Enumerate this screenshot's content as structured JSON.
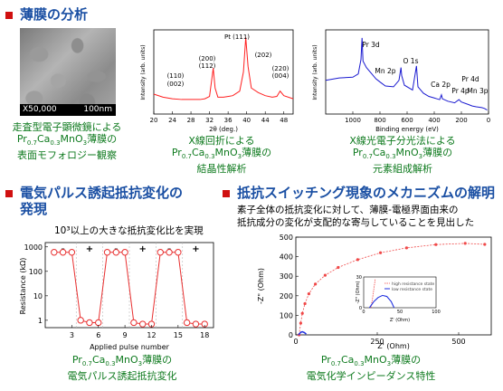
{
  "sections": {
    "thin_film": {
      "title": "薄膜の分析"
    },
    "pulse": {
      "title_line1": "電気パルス誘起抵抗変化の",
      "title_line2": "発現",
      "note": "10³以上の大きな抵抗変化比を実現"
    },
    "mechanism": {
      "title": "抵抗スイッチング現象のメカニズムの解明",
      "note_line1": "素子全体の抵抗変化に対して、薄膜-電極界面由来の",
      "note_line2": "抵抗成分の変化が支配的な寄与していることを見出した"
    }
  },
  "sem_image": {
    "magnification": "X50,000",
    "scale_bar": "100nm"
  },
  "captions": {
    "sem": {
      "line1": "走査型電子顕微鏡による",
      "formula": "Pr0.7Ca0.3MnO3薄膜の",
      "line3": "表面モフォロジー観察"
    },
    "xrd": {
      "line1": "X線回折による",
      "formula": "Pr0.7Ca0.3MnO3薄膜の",
      "line3": "結晶性解析"
    },
    "xps": {
      "line1": "X線光電子分光法による",
      "formula": "Pr0.7Ca0.3MnO3薄膜の",
      "line3": "元素組成解析"
    },
    "pulse": {
      "formula": "Pr0.7Ca0.3MnO3薄膜の",
      "line2": "電気パルス誘起抵抗変化"
    },
    "imp": {
      "formula": "Pr0.7Ca0.3MnO3薄膜の",
      "line2": "電気化学インピーダンス特性"
    }
  },
  "colors": {
    "title_blue": "#1a4fa3",
    "caption_green": "#0e7a1e",
    "marker_red": "#d01010",
    "xrd_line": "#ff2020",
    "xps_line": "#1a1ad0",
    "pulse_line": "#e83030",
    "imp_high": "#f04848",
    "imp_low": "#2030e0"
  },
  "chart_data": [
    {
      "type": "line",
      "id": "xrd",
      "xlabel": "2θ (deg.)",
      "ylabel": "Intensity (arb. units)",
      "xlim": [
        20,
        50
      ],
      "xticks": [
        20,
        24,
        28,
        32,
        36,
        40,
        44,
        48
      ],
      "x": [
        20,
        22,
        24,
        26,
        28,
        30,
        31,
        32,
        32.8,
        33.2,
        33.8,
        35,
        37,
        38.5,
        39.3,
        39.8,
        40.3,
        41,
        42.5,
        44,
        45.5,
        46.5,
        47.2,
        48,
        50
      ],
      "y": [
        26,
        22,
        20,
        19,
        19,
        19,
        20,
        23,
        60,
        34,
        22,
        22,
        24,
        30,
        55,
        100,
        62,
        34,
        28,
        24,
        22,
        23,
        30,
        24,
        20
      ],
      "annotations": [
        "(110)",
        "(002)",
        "(200)",
        "(112)",
        "Pt (111)",
        "(202)",
        "(220)",
        "(004)"
      ]
    },
    {
      "type": "line",
      "id": "xps",
      "xlabel": "Binding energy (eV)",
      "ylabel": "Intensity (arb. units)",
      "xlim": [
        1200,
        0
      ],
      "xticks": [
        1000,
        800,
        600,
        400,
        200,
        0
      ],
      "x": [
        1200,
        1100,
        1000,
        960,
        940,
        932,
        925,
        900,
        860,
        830,
        800,
        760,
        700,
        660,
        645,
        640,
        620,
        560,
        531,
        520,
        480,
        440,
        400,
        380,
        360,
        347,
        340,
        300,
        250,
        218,
        200,
        150,
        120,
        90,
        50,
        30,
        10
      ],
      "y": [
        42,
        45,
        46,
        50,
        68,
        95,
        66,
        58,
        50,
        44,
        40,
        35,
        34,
        42,
        58,
        48,
        36,
        30,
        60,
        34,
        26,
        22,
        20,
        19,
        18,
        24,
        19,
        16,
        14,
        18,
        15,
        12,
        10,
        9,
        8,
        7,
        5
      ],
      "annotations": [
        "Pr 3d",
        "Mn 2p",
        "O 1s",
        "Ca 2p",
        "Pr 4p",
        "Pr 4d",
        "Mn 3p"
      ]
    },
    {
      "type": "line",
      "id": "pulse",
      "xlabel": "Applied pulse number",
      "ylabel": "Resistance (kΩ)",
      "yscale": "log",
      "ylim": [
        0.5,
        1500
      ],
      "yticks": [
        1,
        10,
        100,
        1000
      ],
      "xlim": [
        0,
        19
      ],
      "xticks": [
        3,
        6,
        9,
        12,
        15,
        18
      ],
      "x": [
        1,
        2,
        3,
        4,
        5,
        6,
        7,
        8,
        9,
        10,
        11,
        12,
        13,
        14,
        15,
        16,
        17,
        18
      ],
      "y": [
        600,
        600,
        600,
        1.0,
        0.8,
        0.8,
        600,
        600,
        600,
        0.8,
        0.7,
        0.7,
        600,
        600,
        600,
        0.8,
        0.7,
        0.7
      ],
      "polarity": [
        "-",
        "+",
        "-",
        "+",
        "-",
        "+"
      ]
    },
    {
      "type": "scatter",
      "id": "impedance",
      "xlabel": "Z' (Ohm)",
      "ylabel": "-Z\" (Ohm)",
      "xlim": [
        0,
        600
      ],
      "ylim": [
        0,
        500
      ],
      "xticks": [
        0,
        250,
        500
      ],
      "yticks": [
        0,
        100,
        200,
        300,
        400,
        500
      ],
      "series": [
        {
          "name": "high resistance state",
          "x": [
            10,
            15,
            20,
            28,
            40,
            60,
            90,
            130,
            190,
            260,
            340,
            430,
            520,
            580
          ],
          "y": [
            0,
            60,
            110,
            160,
            210,
            260,
            305,
            345,
            385,
            420,
            445,
            462,
            468,
            463
          ]
        },
        {
          "name": "low resistance state",
          "x": [
            8,
            12,
            16,
            20,
            26,
            32
          ],
          "y": [
            0,
            8,
            14,
            16,
            12,
            4
          ]
        }
      ],
      "inset": {
        "xlabel": "Z' (Ohm)",
        "ylabel": "-Z\" (Ohm)",
        "xlim": [
          0,
          100
        ],
        "ylim": [
          0,
          30
        ],
        "xticks": [
          0,
          50,
          100
        ],
        "yticks": [
          0,
          30
        ],
        "legend": [
          "high resistance state",
          "low resistance state"
        ]
      }
    }
  ]
}
